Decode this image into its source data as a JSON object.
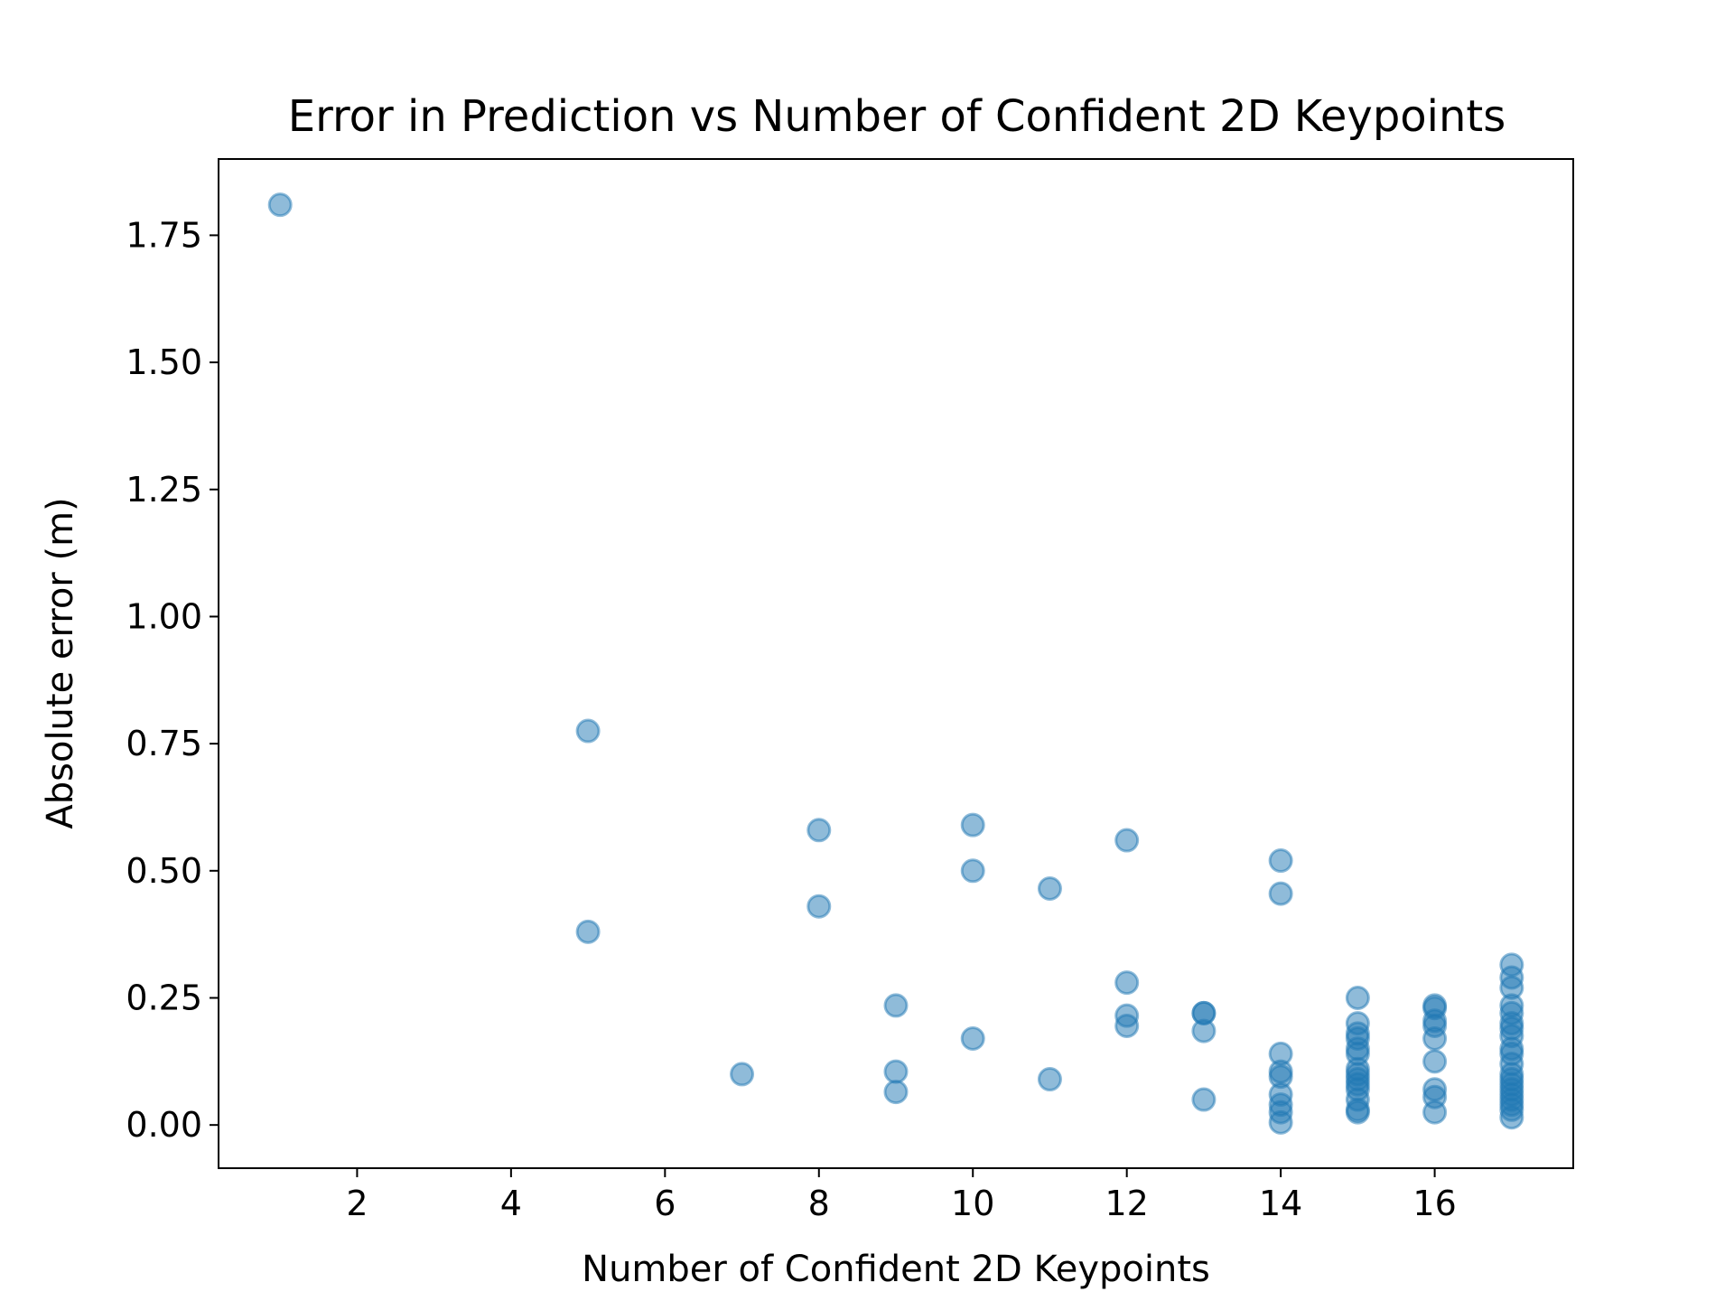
{
  "chart_data": {
    "type": "scatter",
    "title": "Error in Prediction vs Number of Confident 2D Keypoints",
    "xlabel": "Number of Confident 2D Keypoints",
    "ylabel": "Absolute error (m)",
    "xlim": [
      0.2,
      17.8
    ],
    "ylim": [
      -0.085,
      1.9
    ],
    "x_ticks": [
      2,
      4,
      6,
      8,
      10,
      12,
      14,
      16
    ],
    "y_ticks": [
      0.0,
      0.25,
      0.5,
      0.75,
      1.0,
      1.25,
      1.5,
      1.75
    ],
    "y_tick_labels": [
      "0.00",
      "0.25",
      "0.50",
      "0.75",
      "1.00",
      "1.25",
      "1.50",
      "1.75"
    ],
    "grid": false,
    "marker_color": "#1f77b4",
    "marker_alpha": 0.5,
    "x": [
      1,
      5,
      5,
      7,
      8,
      8,
      9,
      9,
      9,
      10,
      10,
      10,
      11,
      11,
      12,
      12,
      12,
      12,
      13,
      13,
      13,
      13,
      14,
      14,
      14,
      14,
      14,
      14,
      14,
      14,
      14,
      15,
      15,
      15,
      15,
      15,
      15,
      15,
      15,
      15,
      15,
      15,
      15,
      15,
      15,
      16,
      16,
      16,
      16,
      16,
      16,
      16,
      16,
      16,
      17,
      17,
      17,
      17,
      17,
      17,
      17,
      17,
      17,
      17,
      17,
      17,
      17,
      17,
      17,
      17,
      17,
      17,
      17,
      17
    ],
    "y": [
      1.81,
      0.775,
      0.38,
      0.1,
      0.58,
      0.43,
      0.235,
      0.105,
      0.065,
      0.59,
      0.5,
      0.17,
      0.465,
      0.09,
      0.56,
      0.28,
      0.215,
      0.195,
      0.22,
      0.22,
      0.185,
      0.05,
      0.52,
      0.455,
      0.14,
      0.105,
      0.095,
      0.06,
      0.04,
      0.025,
      0.005,
      0.25,
      0.2,
      0.18,
      0.17,
      0.15,
      0.14,
      0.11,
      0.1,
      0.09,
      0.08,
      0.07,
      0.05,
      0.03,
      0.025,
      0.235,
      0.23,
      0.205,
      0.195,
      0.17,
      0.125,
      0.07,
      0.055,
      0.025,
      0.315,
      0.29,
      0.27,
      0.235,
      0.22,
      0.2,
      0.19,
      0.175,
      0.15,
      0.14,
      0.12,
      0.1,
      0.09,
      0.08,
      0.07,
      0.06,
      0.05,
      0.04,
      0.03,
      0.015
    ]
  }
}
